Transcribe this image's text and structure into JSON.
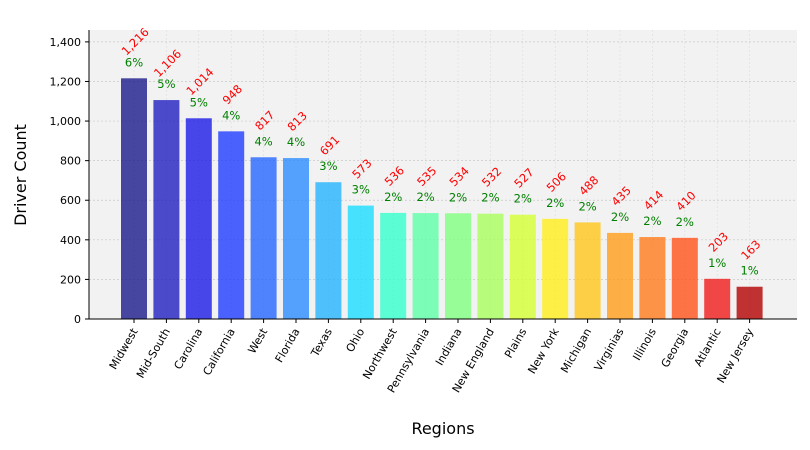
{
  "chart_data": {
    "type": "bar",
    "title": "",
    "xlabel": "Regions",
    "ylabel": "Driver Count",
    "ylim": [
      0,
      1460
    ],
    "yticks": [
      0,
      200,
      400,
      600,
      800,
      1000,
      1200,
      1400
    ],
    "ytick_labels": [
      "0",
      "200",
      "400",
      "600",
      "800",
      "1,000",
      "1,200",
      "1,400"
    ],
    "grid": true,
    "categories": [
      "Midwest",
      "Mid-South",
      "Carolina",
      "California",
      "West",
      "Florida",
      "Texas",
      "Ohio",
      "Northwest",
      "Pennsylvania",
      "Indiana",
      "New England",
      "Plains",
      "New York",
      "Michigan",
      "Virginias",
      "Illinois",
      "Georgia",
      "Atlantic",
      "New Jersey"
    ],
    "values": [
      1216,
      1106,
      1014,
      948,
      817,
      813,
      691,
      573,
      536,
      535,
      534,
      532,
      527,
      506,
      488,
      435,
      414,
      410,
      203,
      163
    ],
    "value_labels": [
      "1,216",
      "1,106",
      "1,014",
      "948",
      "817",
      "813",
      "691",
      "573",
      "536",
      "535",
      "534",
      "532",
      "527",
      "506",
      "488",
      "435",
      "414",
      "410",
      "203",
      "163"
    ],
    "percent_labels": [
      "6%",
      "5%",
      "5%",
      "4%",
      "4%",
      "4%",
      "3%",
      "3%",
      "2%",
      "2%",
      "2%",
      "2%",
      "2%",
      "2%",
      "2%",
      "2%",
      "2%",
      "2%",
      "1%",
      "1%"
    ],
    "colors": [
      "#1a1a8c",
      "#1f1fbf",
      "#1a1ae6",
      "#1f3cff",
      "#2466ff",
      "#2b8cff",
      "#24b4ff",
      "#1adcff",
      "#33ffcc",
      "#5cffa8",
      "#7fff7f",
      "#a8ff5c",
      "#d4ff33",
      "#ffee1a",
      "#ffc61a",
      "#ff9e1a",
      "#ff7a1a",
      "#ff5219",
      "#f01a1a",
      "#b30000"
    ],
    "bar_opacity": 0.8,
    "value_label_color": "#ff0000",
    "percent_label_color": "#008000"
  }
}
